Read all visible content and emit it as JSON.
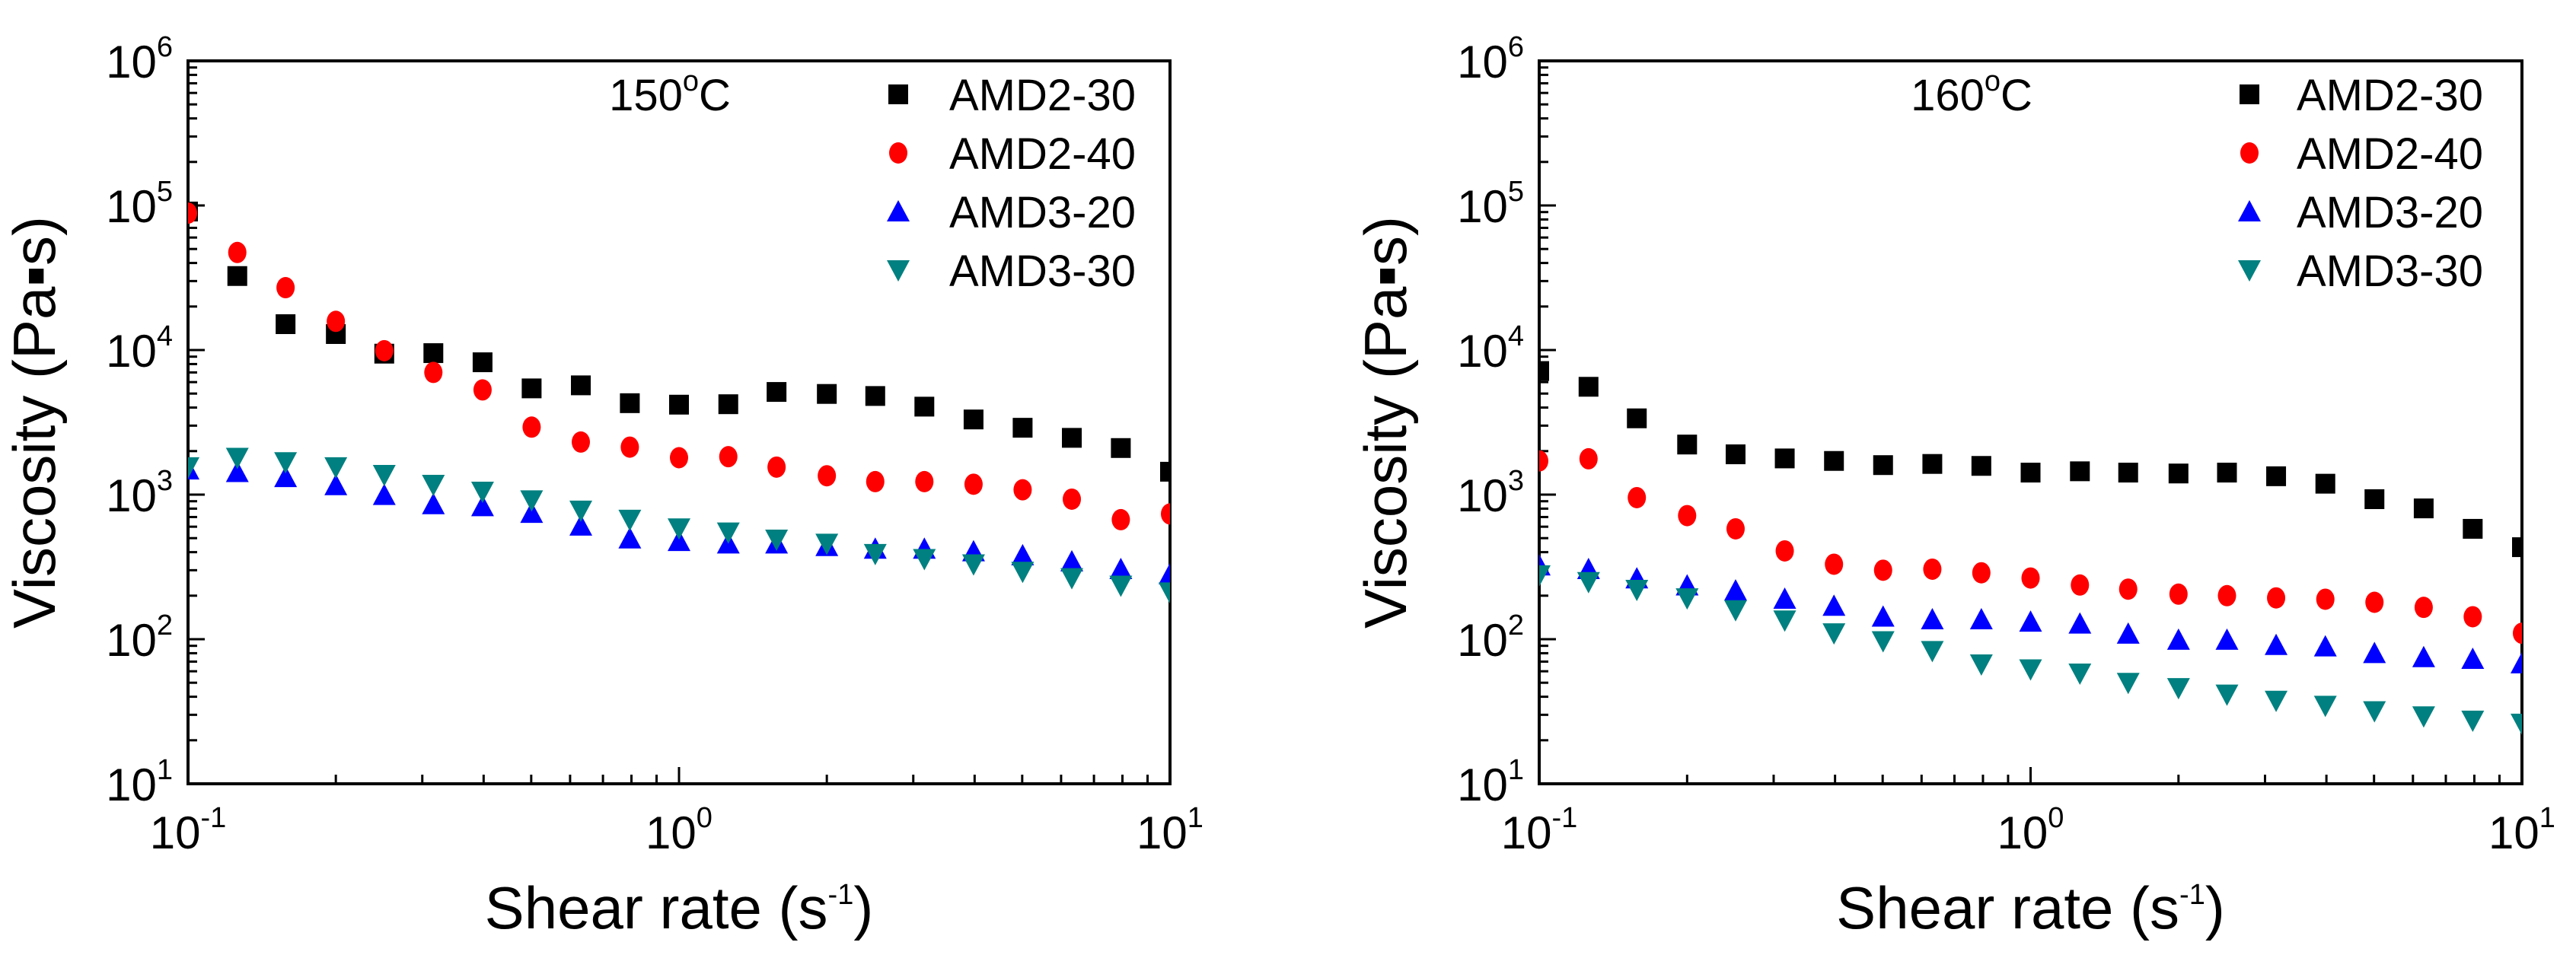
{
  "chart_data": [
    {
      "type": "scatter",
      "annotation": {
        "base": "150",
        "sup": "o",
        "unit": "C"
      },
      "xlabel": {
        "text": "Shear rate (s",
        "sup": "-1",
        "close": ")"
      },
      "ylabel": "Viscosity (Pa▪s)",
      "xscale": "log",
      "yscale": "log",
      "xlim": [
        0.1,
        10
      ],
      "ylim": [
        10,
        1000000
      ],
      "xticks": [
        {
          "base": "10",
          "exp": "-1"
        },
        {
          "base": "10",
          "exp": "0"
        },
        {
          "base": "10",
          "exp": "1"
        }
      ],
      "yticks": [
        {
          "base": "10",
          "exp": "1"
        },
        {
          "base": "10",
          "exp": "2"
        },
        {
          "base": "10",
          "exp": "3"
        },
        {
          "base": "10",
          "exp": "4"
        },
        {
          "base": "10",
          "exp": "5"
        },
        {
          "base": "10",
          "exp": "6"
        }
      ],
      "legend_position": "top-right",
      "x": [
        0.1,
        0.126,
        0.158,
        0.2,
        0.251,
        0.316,
        0.398,
        0.501,
        0.631,
        0.794,
        1.0,
        1.26,
        1.58,
        2.0,
        2.51,
        3.16,
        3.98,
        5.01,
        6.31,
        7.94,
        10.0
      ],
      "series": [
        {
          "name": "AMD2-30",
          "marker": "square",
          "color": "#000000",
          "values": [
            90800,
            32500,
            15100,
            12900,
            9440,
            9520,
            8230,
            5430,
            5700,
            4290,
            4190,
            4220,
            5130,
            4970,
            4810,
            4060,
            3310,
            2900,
            2470,
            2100,
            1440
          ]
        },
        {
          "name": "AMD2-40",
          "marker": "circle",
          "color": "#ff0000",
          "values": [
            88500,
            47300,
            27000,
            15800,
            9900,
            7000,
            5300,
            2930,
            2310,
            2130,
            1800,
            1830,
            1550,
            1350,
            1230,
            1230,
            1180,
            1080,
            930,
            671,
            735
          ]
        },
        {
          "name": "AMD3-20",
          "marker": "triangle-up",
          "color": "#0000ff",
          "values": [
            1490,
            1430,
            1320,
            1160,
            992,
            857,
            830,
            746,
            609,
            497,
            477,
            458,
            458,
            440,
            422,
            422,
            405,
            380,
            345,
            305,
            281
          ]
        },
        {
          "name": "AMD3-30",
          "marker": "triangle-down",
          "color": "#008080",
          "values": [
            1550,
            1800,
            1680,
            1550,
            1370,
            1170,
            1050,
            914,
            777,
            671,
            585,
            548,
            489,
            458,
            389,
            359,
            330,
            293,
            265,
            235,
            211
          ]
        }
      ]
    },
    {
      "type": "scatter",
      "annotation": {
        "base": "160",
        "sup": "o",
        "unit": "C"
      },
      "xlabel": {
        "text": "Shear rate (s",
        "sup": "-1",
        "close": ")"
      },
      "ylabel": "Viscosity (Pa▪s)",
      "xscale": "log",
      "yscale": "log",
      "xlim": [
        0.1,
        10
      ],
      "ylim": [
        10,
        1000000
      ],
      "xticks": [
        {
          "base": "10",
          "exp": "-1"
        },
        {
          "base": "10",
          "exp": "0"
        },
        {
          "base": "10",
          "exp": "1"
        }
      ],
      "yticks": [
        {
          "base": "10",
          "exp": "1"
        },
        {
          "base": "10",
          "exp": "2"
        },
        {
          "base": "10",
          "exp": "3"
        },
        {
          "base": "10",
          "exp": "4"
        },
        {
          "base": "10",
          "exp": "5"
        },
        {
          "base": "10",
          "exp": "6"
        }
      ],
      "legend_position": "top-right",
      "x": [
        0.1,
        0.126,
        0.158,
        0.2,
        0.251,
        0.316,
        0.398,
        0.501,
        0.631,
        0.794,
        1.0,
        1.26,
        1.58,
        2.0,
        2.51,
        3.16,
        3.98,
        5.01,
        6.31,
        7.94,
        10.0
      ],
      "series": [
        {
          "name": "AMD2-30",
          "marker": "square",
          "color": "#000000",
          "values": [
            7160,
            5570,
            3370,
            2220,
            1900,
            1780,
            1710,
            1600,
            1630,
            1580,
            1420,
            1450,
            1420,
            1400,
            1420,
            1340,
            1190,
            930,
            803,
            580,
            433
          ]
        },
        {
          "name": "AMD2-40",
          "marker": "circle",
          "color": "#ff0000",
          "values": [
            1710,
            1770,
            953,
            716,
            580,
            408,
            330,
            300,
            305,
            288,
            265,
            237,
            222,
            205,
            200,
            193,
            189,
            180,
            166,
            143,
            110
          ]
        },
        {
          "name": "AMD3-20",
          "marker": "triangle-up",
          "color": "#0000ff",
          "values": [
            323,
            305,
            263,
            235,
            217,
            190,
            170,
            143,
            137,
            137,
            132,
            128,
            109,
            99,
            99,
            91,
            89,
            80,
            75,
            73,
            68
          ]
        },
        {
          "name": "AMD3-30",
          "marker": "triangle-down",
          "color": "#008080",
          "values": [
            277,
            249,
            220,
            192,
            159,
            135,
            110,
            97,
            83,
            67,
            62,
            58,
            50,
            46,
            41.5,
            37.6,
            34.7,
            31.8,
            29.3,
            27.4,
            26.1
          ]
        }
      ]
    }
  ]
}
